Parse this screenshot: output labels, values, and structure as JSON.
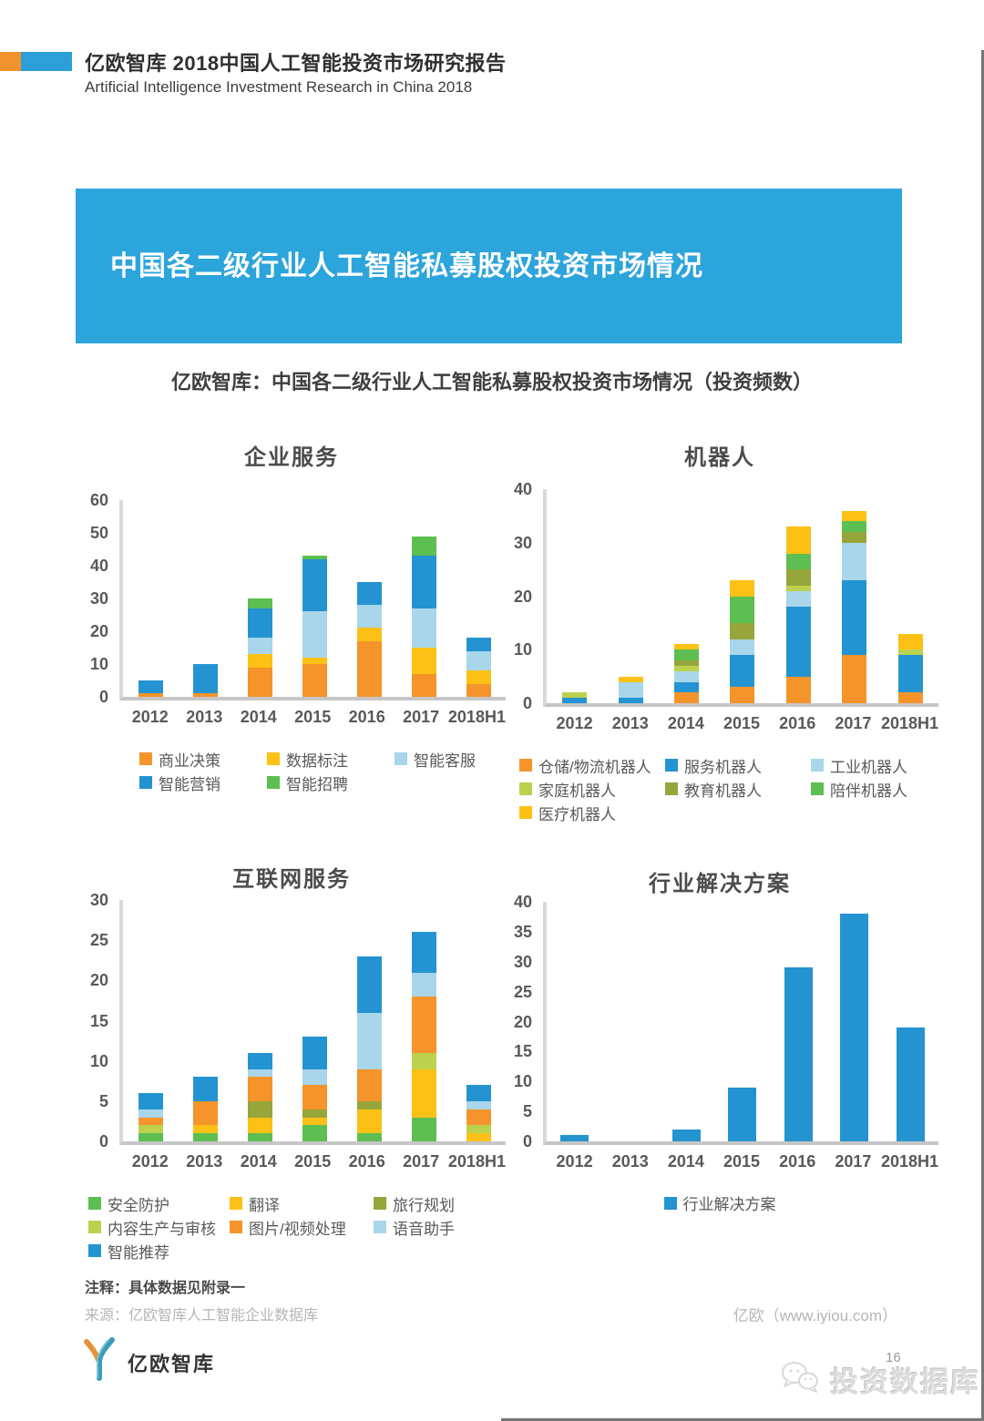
{
  "header": {
    "title": "亿欧智库 2018中国人工智能投资市场研究报告",
    "subtitle_en": "Artificial Intelligence Investment Research in China 2018"
  },
  "banner": {
    "title": "中国各二级行业人工智能私募股权投资市场情况"
  },
  "section_subtitle": "亿欧智库：中国各二级行业人工智能私募股权投资市场情况（投资频数）",
  "palette": {
    "orange": "#f5942a",
    "yellow": "#fdc116",
    "lightblue": "#a9d6ea",
    "blue": "#2493d1",
    "green": "#5dbe51",
    "lightgreen": "#bcd24e",
    "olive": "#96a63b",
    "banner_blue": "#2ca4dc"
  },
  "chart_data": [
    {
      "type": "bar",
      "stacked": true,
      "title": "企业服务",
      "categories": [
        "2012",
        "2013",
        "2014",
        "2015",
        "2016",
        "2017",
        "2018H1"
      ],
      "ylim": [
        0,
        60
      ],
      "ytick_step": 10,
      "grid": false,
      "legend_position": "bottom",
      "series": [
        {
          "name": "商业决策",
          "color": "orange",
          "values": [
            1,
            1,
            9,
            10,
            17,
            7,
            4
          ]
        },
        {
          "name": "数据标注",
          "color": "yellow",
          "values": [
            0,
            0,
            4,
            2,
            4,
            8,
            4
          ]
        },
        {
          "name": "智能客服",
          "color": "lightblue",
          "values": [
            0,
            0,
            5,
            14,
            7,
            12,
            6
          ]
        },
        {
          "name": "智能营销",
          "color": "blue",
          "values": [
            4,
            9,
            9,
            16,
            7,
            16,
            4
          ]
        },
        {
          "name": "智能招聘",
          "color": "green",
          "values": [
            0,
            0,
            3,
            1,
            0,
            6,
            0
          ]
        }
      ]
    },
    {
      "type": "bar",
      "stacked": true,
      "title": "机器人",
      "categories": [
        "2012",
        "2013",
        "2014",
        "2015",
        "2016",
        "2017",
        "2018H1"
      ],
      "ylim": [
        0,
        40
      ],
      "ytick_step": 10,
      "grid": false,
      "legend_position": "bottom",
      "series": [
        {
          "name": "仓储/物流机器人",
          "color": "orange",
          "values": [
            0,
            0,
            2,
            3,
            5,
            9,
            2
          ]
        },
        {
          "name": "服务机器人",
          "color": "blue",
          "values": [
            1,
            1,
            2,
            6,
            13,
            14,
            7
          ]
        },
        {
          "name": "工业机器人",
          "color": "lightblue",
          "values": [
            0,
            3,
            2,
            3,
            3,
            7,
            0
          ]
        },
        {
          "name": "家庭机器人",
          "color": "lightgreen",
          "values": [
            1,
            0,
            1,
            0,
            1,
            0,
            1
          ]
        },
        {
          "name": "教育机器人",
          "color": "olive",
          "values": [
            0,
            0,
            1,
            3,
            3,
            2,
            0
          ]
        },
        {
          "name": "陪伴机器人",
          "color": "green",
          "values": [
            0,
            0,
            2,
            5,
            3,
            2,
            0
          ]
        },
        {
          "name": "医疗机器人",
          "color": "yellow",
          "values": [
            0,
            1,
            1,
            3,
            5,
            2,
            3
          ]
        }
      ]
    },
    {
      "type": "bar",
      "stacked": true,
      "title": "互联网服务",
      "categories": [
        "2012",
        "2013",
        "2014",
        "2015",
        "2016",
        "2017",
        "2018H1"
      ],
      "ylim": [
        0,
        30
      ],
      "ytick_step": 5,
      "grid": false,
      "legend_position": "bottom",
      "series": [
        {
          "name": "安全防护",
          "color": "green",
          "values": [
            1,
            1,
            1,
            2,
            1,
            3,
            0
          ]
        },
        {
          "name": "翻译",
          "color": "yellow",
          "values": [
            0,
            1,
            2,
            1,
            3,
            6,
            1
          ]
        },
        {
          "name": "旅行规划",
          "color": "olive",
          "values": [
            0,
            0,
            2,
            1,
            1,
            0,
            0
          ]
        },
        {
          "name": "内容生产与审核",
          "color": "lightgreen",
          "values": [
            1,
            0,
            0,
            0,
            0,
            2,
            1
          ]
        },
        {
          "name": "图片/视频处理",
          "color": "orange",
          "values": [
            1,
            3,
            3,
            3,
            4,
            7,
            2
          ]
        },
        {
          "name": "语音助手",
          "color": "lightblue",
          "values": [
            1,
            0,
            1,
            2,
            7,
            3,
            1
          ]
        },
        {
          "name": "智能推荐",
          "color": "blue",
          "values": [
            2,
            3,
            2,
            4,
            7,
            5,
            2
          ]
        }
      ]
    },
    {
      "type": "bar",
      "stacked": false,
      "title": "行业解决方案",
      "categories": [
        "2012",
        "2013",
        "2014",
        "2015",
        "2016",
        "2017",
        "2018H1"
      ],
      "ylim": [
        0,
        40
      ],
      "ytick_step": 5,
      "grid": false,
      "legend_position": "bottom",
      "series": [
        {
          "name": "行业解决方案",
          "color": "blue",
          "values": [
            1,
            0,
            2,
            9,
            29,
            38,
            19
          ]
        }
      ]
    }
  ],
  "footer": {
    "note": "注释：具体数据见附录一",
    "source": "来源：亿欧智库人工智能企业数据库",
    "source_right": "亿欧（www.iyiou.com）",
    "logo_text": "亿欧智库",
    "page_number": "16",
    "watermark": "投资数据库"
  }
}
